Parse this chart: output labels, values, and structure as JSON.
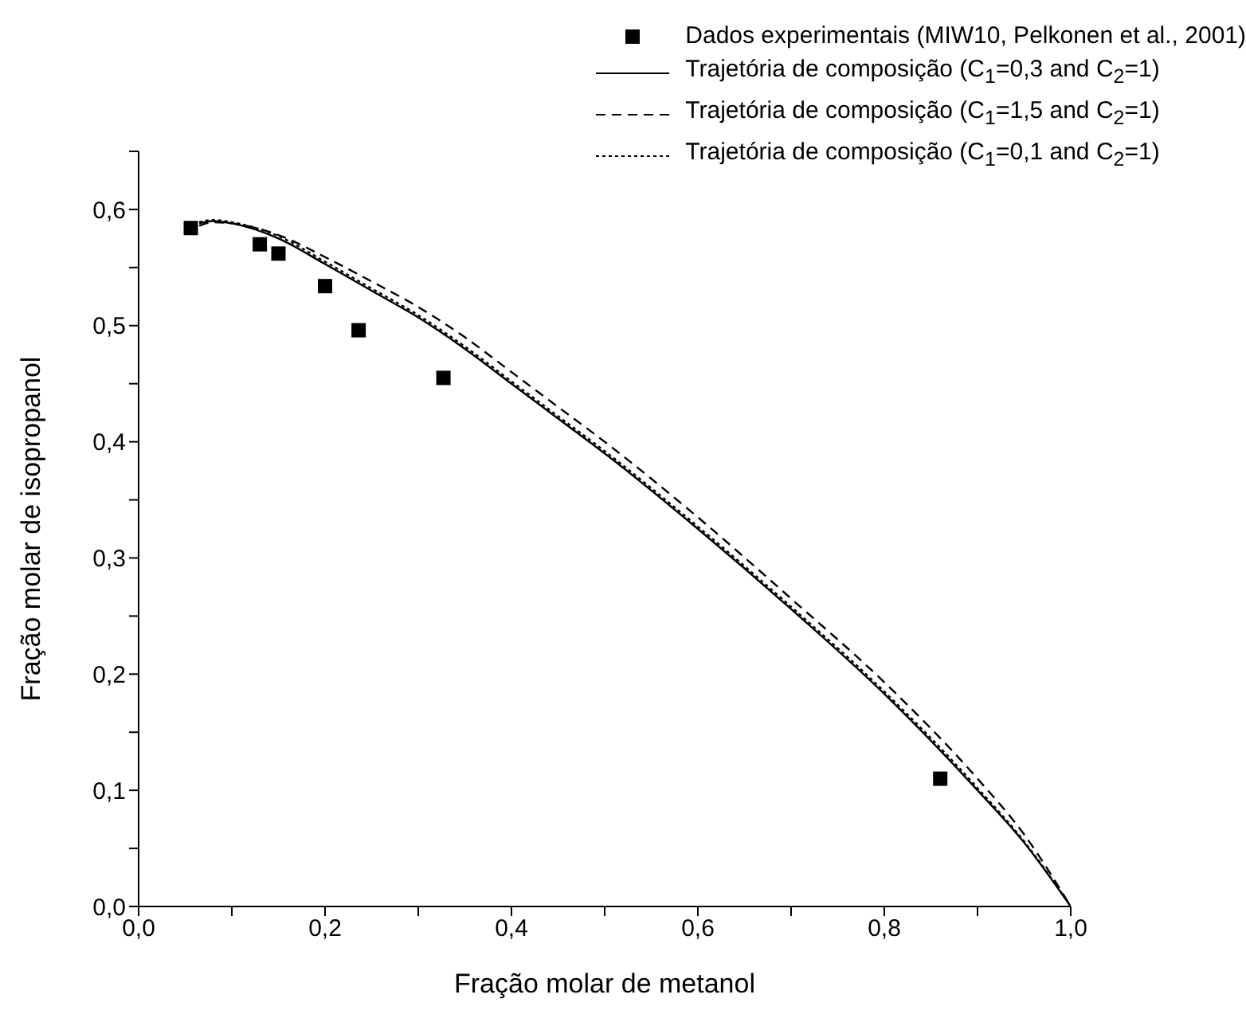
{
  "chart_data": {
    "type": "line",
    "xlabel": "Fração molar de metanol",
    "ylabel": "Fração molar de isopropanol",
    "xlim": [
      0,
      1
    ],
    "ylim": [
      0,
      0.65
    ],
    "xticks": [
      {
        "value": 0,
        "label": "0,0"
      },
      {
        "value": 0.1,
        "label": null
      },
      {
        "value": 0.2,
        "label": "0,2"
      },
      {
        "value": 0.3,
        "label": null
      },
      {
        "value": 0.4,
        "label": "0,4"
      },
      {
        "value": 0.5,
        "label": null
      },
      {
        "value": 0.6,
        "label": "0,6"
      },
      {
        "value": 0.7,
        "label": null
      },
      {
        "value": 0.8,
        "label": "0,8"
      },
      {
        "value": 0.9,
        "label": null
      },
      {
        "value": 1,
        "label": "1,0"
      }
    ],
    "yticks": [
      {
        "value": 0,
        "label": "0,0"
      },
      {
        "value": 0.05,
        "label": null
      },
      {
        "value": 0.1,
        "label": "0,1"
      },
      {
        "value": 0.15,
        "label": null
      },
      {
        "value": 0.2,
        "label": "0,2"
      },
      {
        "value": 0.25,
        "label": null
      },
      {
        "value": 0.3,
        "label": "0,3"
      },
      {
        "value": 0.35,
        "label": null
      },
      {
        "value": 0.4,
        "label": "0,4"
      },
      {
        "value": 0.45,
        "label": null
      },
      {
        "value": 0.5,
        "label": "0,5"
      },
      {
        "value": 0.55,
        "label": null
      },
      {
        "value": 0.6,
        "label": "0,6"
      },
      {
        "value": 0.65,
        "label": null
      }
    ],
    "grid": false,
    "legend": "top right",
    "series": [
      {
        "name": "Dados experimentais (MIW10, Pelkonen et al., 2001)",
        "type": "scatter",
        "marker": "square",
        "color": "#000000",
        "x": [
          0.056,
          0.13,
          0.15,
          0.2,
          0.236,
          0.327,
          0.86
        ],
        "values": [
          0.584,
          0.57,
          0.562,
          0.534,
          0.496,
          0.455,
          0.11
        ]
      },
      {
        "name": "Trajetória de composição (C$_{1}$=0,3 and C$_{2}$=1)",
        "line_style": "solid",
        "marker": "none",
        "color": "#000000",
        "x": [
          0.065,
          0.08,
          0.1,
          0.15,
          0.2,
          0.25,
          0.3,
          0.35,
          0.4,
          0.45,
          0.5,
          0.6,
          0.7,
          0.8,
          0.9,
          0.95,
          1.0
        ],
        "values": [
          0.588,
          0.59,
          0.588,
          0.575,
          0.553,
          0.53,
          0.507,
          0.48,
          0.45,
          0.42,
          0.39,
          0.325,
          0.256,
          0.183,
          0.1,
          0.055,
          0.0
        ]
      },
      {
        "name": "Trajetória de composição (C$_{1}$=1,5 and C$_{2}$=1)",
        "line_style": "dashed",
        "marker": "none",
        "color": "#000000",
        "x": [
          0.065,
          0.08,
          0.1,
          0.15,
          0.2,
          0.25,
          0.3,
          0.35,
          0.4,
          0.45,
          0.5,
          0.6,
          0.7,
          0.8,
          0.9,
          0.95,
          1.0
        ],
        "values": [
          0.586,
          0.589,
          0.588,
          0.578,
          0.559,
          0.538,
          0.516,
          0.49,
          0.46,
          0.43,
          0.4,
          0.335,
          0.265,
          0.193,
          0.11,
          0.062,
          0.0
        ]
      },
      {
        "name": "Trajetória de composição (C$_{1}$=0,1 and C$_{2}$=1)",
        "line_style": "dotted",
        "marker": "none",
        "color": "#000000",
        "x": [
          0.065,
          0.08,
          0.1,
          0.15,
          0.2,
          0.25,
          0.3,
          0.35,
          0.4,
          0.45,
          0.5,
          0.6,
          0.7,
          0.8,
          0.9,
          0.95,
          1.0
        ],
        "values": [
          0.589,
          0.591,
          0.589,
          0.577,
          0.555,
          0.532,
          0.509,
          0.482,
          0.452,
          0.422,
          0.392,
          0.327,
          0.258,
          0.185,
          0.102,
          0.056,
          0.0
        ]
      }
    ]
  }
}
